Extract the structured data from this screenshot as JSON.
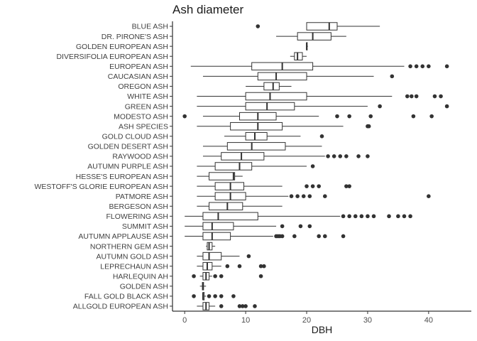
{
  "chart_data": {
    "type": "boxplot",
    "orientation": "horizontal",
    "title": "Ash diameter",
    "xlabel": "DBH",
    "ylabel": "",
    "xlim": [
      -2,
      47
    ],
    "xticks": [
      0,
      10,
      20,
      30,
      40
    ],
    "grid": false,
    "colors": {
      "box_fill": "#ffffff",
      "line": "#333333",
      "outlier": "#333333",
      "axis": "#000000"
    },
    "categories": [
      "BLUE ASH",
      "DR. PIRONE'S ASH",
      "GOLDEN EUROPEAN ASH",
      "DIVERSIFOLIA EUROPEAN ASH",
      "EUROPEAN ASH",
      "CAUCASIAN ASH",
      "OREGON ASH",
      "WHITE ASH",
      "GREEN ASH",
      "MODESTO ASH",
      "ASH SPECIES",
      "GOLD CLOUD ASH",
      "GOLDEN DESERT ASH",
      "RAYWOOD ASH",
      "AUTUMN PURPLE ASH",
      "HESSE'S EUROPEAN ASH",
      "WESTOFF'S GLORIE EUROPEAN ASH",
      "PATMORE ASH",
      "BERGESON ASH",
      "FLOWERING ASH",
      "SUMMIT ASH",
      "AUTUMN APPLAUSE ASH",
      "NORTHERN GEM ASH",
      "AUTUMN GOLD ASH",
      "LEPRECHAUN ASH",
      "HARLEQUIN AH",
      "GOLDEN ASH",
      "FALL GOLD BLACK ASH",
      "ALLGOLD EUROPEAN ASH"
    ],
    "boxes": [
      {
        "min": 20,
        "q1": 20,
        "median": 23.7,
        "q3": 25,
        "max": 32,
        "outliers": [
          12
        ]
      },
      {
        "min": 15,
        "q1": 18.5,
        "median": 21,
        "q3": 24,
        "max": 26.5,
        "outliers": []
      },
      {
        "min": 20,
        "q1": 20,
        "median": 20,
        "q3": 20,
        "max": 20.2,
        "outliers": []
      },
      {
        "min": 17.3,
        "q1": 18,
        "median": 18.5,
        "q3": 19.3,
        "max": 20,
        "outliers": []
      },
      {
        "min": 1,
        "q1": 11,
        "median": 16,
        "q3": 21,
        "max": 36,
        "outliers": [
          37,
          38,
          39,
          40,
          43
        ]
      },
      {
        "min": 3,
        "q1": 12,
        "median": 15,
        "q3": 20,
        "max": 31,
        "outliers": [
          34
        ]
      },
      {
        "min": 10,
        "q1": 13,
        "median": 14.5,
        "q3": 15.5,
        "max": 17.5,
        "outliers": []
      },
      {
        "min": 2,
        "q1": 10,
        "median": 14,
        "q3": 20,
        "max": 34,
        "outliers": [
          36.5,
          37.2,
          38,
          41,
          42
        ]
      },
      {
        "min": 2,
        "q1": 10,
        "median": 13.5,
        "q3": 18,
        "max": 30,
        "outliers": [
          32,
          43
        ]
      },
      {
        "min": 3,
        "q1": 9,
        "median": 12,
        "q3": 15,
        "max": 22,
        "outliers": [
          0,
          25,
          27,
          30.5,
          37.5,
          40.5
        ]
      },
      {
        "min": 2,
        "q1": 7.5,
        "median": 12,
        "q3": 16,
        "max": 26,
        "outliers": [
          30,
          30.2
        ]
      },
      {
        "min": 6.5,
        "q1": 10,
        "median": 11.5,
        "q3": 13.5,
        "max": 19,
        "outliers": [
          22.5
        ]
      },
      {
        "min": 3,
        "q1": 7,
        "median": 11,
        "q3": 16.5,
        "max": 22.5,
        "outliers": []
      },
      {
        "min": 3,
        "q1": 6,
        "median": 9.3,
        "q3": 13,
        "max": 23,
        "outliers": [
          23.5,
          24.5,
          25.5,
          26.5,
          28.5,
          30
        ]
      },
      {
        "min": 2,
        "q1": 5,
        "median": 9,
        "q3": 11,
        "max": 20,
        "outliers": [
          21
        ]
      },
      {
        "min": 2,
        "q1": 4,
        "median": 8,
        "q3": 8.2,
        "max": 9.5,
        "outliers": []
      },
      {
        "min": 2,
        "q1": 5,
        "median": 7.5,
        "q3": 9.7,
        "max": 16,
        "outliers": [
          20,
          21,
          22,
          26.5,
          27
        ]
      },
      {
        "min": 2,
        "q1": 5,
        "median": 7.5,
        "q3": 10,
        "max": 17,
        "outliers": [
          17.5,
          18.5,
          19.5,
          20.5,
          23,
          40
        ]
      },
      {
        "min": 2,
        "q1": 4,
        "median": 7,
        "q3": 9.5,
        "max": 16,
        "outliers": []
      },
      {
        "min": 0,
        "q1": 3,
        "median": 5.5,
        "q3": 12,
        "max": 25.5,
        "outliers": [
          26,
          27,
          28,
          29,
          30,
          31,
          33.5,
          35,
          36,
          37
        ]
      },
      {
        "min": 0,
        "q1": 3,
        "median": 4.5,
        "q3": 8,
        "max": 15,
        "outliers": [
          16,
          19,
          20.5
        ]
      },
      {
        "min": 0,
        "q1": 3,
        "median": 4.5,
        "q3": 7.5,
        "max": 14.5,
        "outliers": [
          15,
          15.3,
          15.6,
          16,
          18,
          22,
          23,
          26
        ]
      },
      {
        "min": 3.5,
        "q1": 3.7,
        "median": 4,
        "q3": 4.5,
        "max": 5,
        "outliers": []
      },
      {
        "min": 2,
        "q1": 3,
        "median": 4,
        "q3": 6,
        "max": 9,
        "outliers": [
          10.5
        ]
      },
      {
        "min": 2,
        "q1": 3,
        "median": 3.7,
        "q3": 4.5,
        "max": 6,
        "outliers": [
          7,
          9,
          12.5,
          13
        ]
      },
      {
        "min": 2.5,
        "q1": 3,
        "median": 3.5,
        "q3": 4,
        "max": 4.5,
        "outliers": [
          1.5,
          5,
          6,
          12.5
        ]
      },
      {
        "min": 2.5,
        "q1": 2.9,
        "median": 3,
        "q3": 3.1,
        "max": 3.5,
        "outliers": []
      },
      {
        "min": 3,
        "q1": 3,
        "median": 3,
        "q3": 3.2,
        "max": 3.5,
        "outliers": [
          1.5,
          4,
          5,
          6,
          8
        ]
      },
      {
        "min": 2,
        "q1": 3,
        "median": 3.5,
        "q3": 4,
        "max": 5,
        "outliers": [
          6,
          9,
          9.5,
          10,
          11.5
        ]
      }
    ]
  }
}
